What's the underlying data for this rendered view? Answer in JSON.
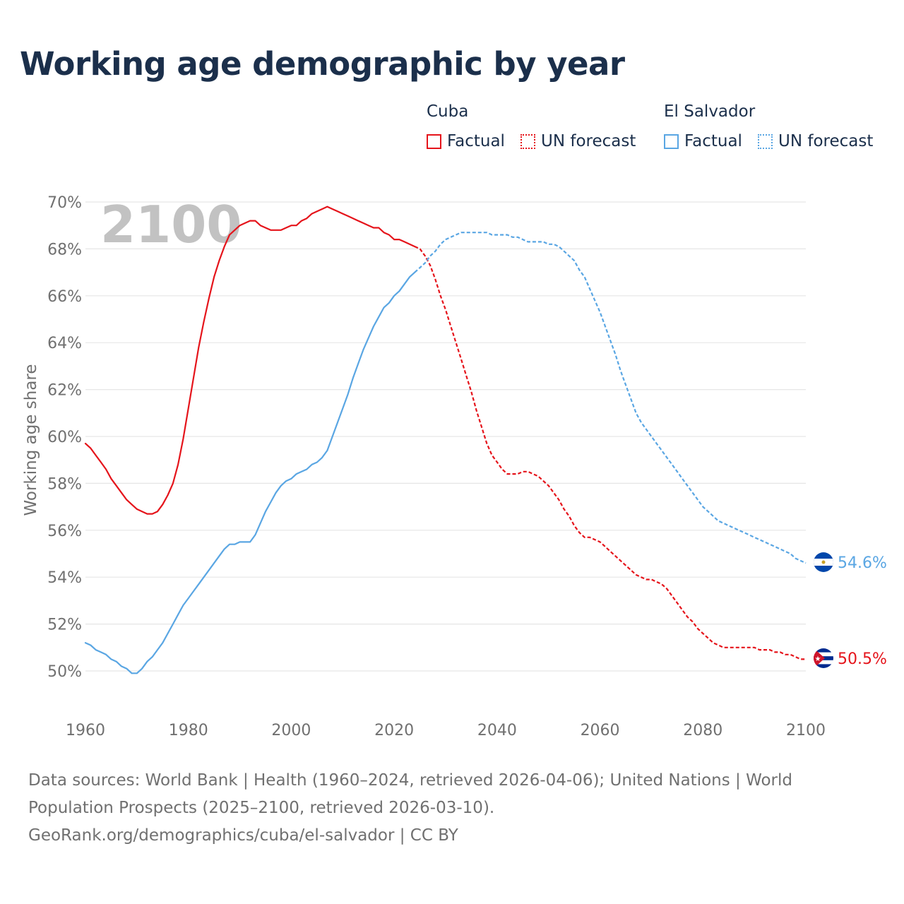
{
  "title": "Working age demographic by year",
  "legend": {
    "groups": [
      {
        "name": "Cuba",
        "factual_label": "Factual",
        "forecast_label": "UN forecast",
        "color": "#e5141b"
      },
      {
        "name": "El Salvador",
        "factual_label": "Factual",
        "forecast_label": "UN forecast",
        "color": "#5aa6e3"
      }
    ]
  },
  "footer": {
    "sources": "Data sources: World Bank | Health (1960–2024, retrieved 2026-04-06); United Nations | World Population Prospects (2025–2100, retrieved 2026-03-10).",
    "link": "GeoRank.org/demographics/cuba/el-salvador | CC BY"
  },
  "chart_data": {
    "type": "line",
    "title": "Working age demographic by year",
    "year_watermark": "2100",
    "xlabel": "",
    "ylabel": "Working age share",
    "xlim": [
      1960,
      2100
    ],
    "ylim": [
      49,
      70
    ],
    "x_ticks": [
      1960,
      1980,
      2000,
      2020,
      2040,
      2060,
      2080,
      2100
    ],
    "x_tick_labels": [
      "1960",
      "1980",
      "2000",
      "2020",
      "2040",
      "2060",
      "2080",
      "2100"
    ],
    "y_ticks": [
      50,
      52,
      54,
      56,
      58,
      60,
      62,
      64,
      66,
      68,
      70
    ],
    "y_tick_labels": [
      "50%",
      "52%",
      "54%",
      "56%",
      "58%",
      "60%",
      "62%",
      "64%",
      "66%",
      "68%",
      "70%"
    ],
    "grid": true,
    "series": [
      {
        "name": "Cuba",
        "color": "#e5141b",
        "end_label": "50.5%",
        "factual": [
          [
            1960,
            59.7
          ],
          [
            1961,
            59.5
          ],
          [
            1962,
            59.2
          ],
          [
            1963,
            58.9
          ],
          [
            1964,
            58.6
          ],
          [
            1965,
            58.2
          ],
          [
            1966,
            57.9
          ],
          [
            1967,
            57.6
          ],
          [
            1968,
            57.3
          ],
          [
            1969,
            57.1
          ],
          [
            1970,
            56.9
          ],
          [
            1971,
            56.8
          ],
          [
            1972,
            56.7
          ],
          [
            1973,
            56.7
          ],
          [
            1974,
            56.8
          ],
          [
            1975,
            57.1
          ],
          [
            1976,
            57.5
          ],
          [
            1977,
            58.0
          ],
          [
            1978,
            58.8
          ],
          [
            1979,
            59.9
          ],
          [
            1980,
            61.2
          ],
          [
            1981,
            62.5
          ],
          [
            1982,
            63.8
          ],
          [
            1983,
            64.9
          ],
          [
            1984,
            65.9
          ],
          [
            1985,
            66.8
          ],
          [
            1986,
            67.5
          ],
          [
            1987,
            68.1
          ],
          [
            1988,
            68.6
          ],
          [
            1989,
            68.8
          ],
          [
            1990,
            69.0
          ],
          [
            1991,
            69.1
          ],
          [
            1992,
            69.2
          ],
          [
            1993,
            69.2
          ],
          [
            1994,
            69.0
          ],
          [
            1995,
            68.9
          ],
          [
            1996,
            68.8
          ],
          [
            1997,
            68.8
          ],
          [
            1998,
            68.8
          ],
          [
            1999,
            68.9
          ],
          [
            2000,
            69.0
          ],
          [
            2001,
            69.0
          ],
          [
            2002,
            69.2
          ],
          [
            2003,
            69.3
          ],
          [
            2004,
            69.5
          ],
          [
            2005,
            69.6
          ],
          [
            2006,
            69.7
          ],
          [
            2007,
            69.8
          ],
          [
            2008,
            69.7
          ],
          [
            2009,
            69.6
          ],
          [
            2010,
            69.5
          ],
          [
            2011,
            69.4
          ],
          [
            2012,
            69.3
          ],
          [
            2013,
            69.2
          ],
          [
            2014,
            69.1
          ],
          [
            2015,
            69.0
          ],
          [
            2016,
            68.9
          ],
          [
            2017,
            68.9
          ],
          [
            2018,
            68.7
          ],
          [
            2019,
            68.6
          ],
          [
            2020,
            68.4
          ],
          [
            2021,
            68.4
          ],
          [
            2022,
            68.3
          ],
          [
            2023,
            68.2
          ],
          [
            2024,
            68.1
          ]
        ],
        "forecast": [
          [
            2024,
            68.1
          ],
          [
            2025,
            68.0
          ],
          [
            2026,
            67.7
          ],
          [
            2027,
            67.3
          ],
          [
            2028,
            66.7
          ],
          [
            2029,
            66.0
          ],
          [
            2030,
            65.4
          ],
          [
            2031,
            64.7
          ],
          [
            2032,
            64.0
          ],
          [
            2033,
            63.3
          ],
          [
            2034,
            62.6
          ],
          [
            2035,
            61.9
          ],
          [
            2036,
            61.1
          ],
          [
            2037,
            60.4
          ],
          [
            2038,
            59.7
          ],
          [
            2039,
            59.2
          ],
          [
            2040,
            58.9
          ],
          [
            2041,
            58.6
          ],
          [
            2042,
            58.4
          ],
          [
            2043,
            58.4
          ],
          [
            2044,
            58.4
          ],
          [
            2045,
            58.5
          ],
          [
            2046,
            58.5
          ],
          [
            2047,
            58.4
          ],
          [
            2048,
            58.3
          ],
          [
            2049,
            58.1
          ],
          [
            2050,
            57.9
          ],
          [
            2051,
            57.6
          ],
          [
            2052,
            57.3
          ],
          [
            2053,
            56.9
          ],
          [
            2054,
            56.6
          ],
          [
            2055,
            56.2
          ],
          [
            2056,
            55.9
          ],
          [
            2057,
            55.7
          ],
          [
            2058,
            55.7
          ],
          [
            2059,
            55.6
          ],
          [
            2060,
            55.5
          ],
          [
            2061,
            55.3
          ],
          [
            2062,
            55.1
          ],
          [
            2063,
            54.9
          ],
          [
            2064,
            54.7
          ],
          [
            2065,
            54.5
          ],
          [
            2066,
            54.3
          ],
          [
            2067,
            54.1
          ],
          [
            2068,
            54.0
          ],
          [
            2069,
            53.9
          ],
          [
            2070,
            53.9
          ],
          [
            2071,
            53.8
          ],
          [
            2072,
            53.7
          ],
          [
            2073,
            53.5
          ],
          [
            2074,
            53.2
          ],
          [
            2075,
            52.9
          ],
          [
            2076,
            52.6
          ],
          [
            2077,
            52.3
          ],
          [
            2078,
            52.1
          ],
          [
            2079,
            51.8
          ],
          [
            2080,
            51.6
          ],
          [
            2081,
            51.4
          ],
          [
            2082,
            51.2
          ],
          [
            2083,
            51.1
          ],
          [
            2084,
            51.0
          ],
          [
            2085,
            51.0
          ],
          [
            2086,
            51.0
          ],
          [
            2087,
            51.0
          ],
          [
            2088,
            51.0
          ],
          [
            2089,
            51.0
          ],
          [
            2090,
            51.0
          ],
          [
            2091,
            50.9
          ],
          [
            2092,
            50.9
          ],
          [
            2093,
            50.9
          ],
          [
            2094,
            50.8
          ],
          [
            2095,
            50.8
          ],
          [
            2096,
            50.7
          ],
          [
            2097,
            50.7
          ],
          [
            2098,
            50.6
          ],
          [
            2099,
            50.5
          ],
          [
            2100,
            50.5
          ]
        ]
      },
      {
        "name": "El Salvador",
        "color": "#5aa6e3",
        "end_label": "54.6%",
        "factual": [
          [
            1960,
            51.2
          ],
          [
            1961,
            51.1
          ],
          [
            1962,
            50.9
          ],
          [
            1963,
            50.8
          ],
          [
            1964,
            50.7
          ],
          [
            1965,
            50.5
          ],
          [
            1966,
            50.4
          ],
          [
            1967,
            50.2
          ],
          [
            1968,
            50.1
          ],
          [
            1969,
            49.9
          ],
          [
            1970,
            49.9
          ],
          [
            1971,
            50.1
          ],
          [
            1972,
            50.4
          ],
          [
            1973,
            50.6
          ],
          [
            1974,
            50.9
          ],
          [
            1975,
            51.2
          ],
          [
            1976,
            51.6
          ],
          [
            1977,
            52.0
          ],
          [
            1978,
            52.4
          ],
          [
            1979,
            52.8
          ],
          [
            1980,
            53.1
          ],
          [
            1981,
            53.4
          ],
          [
            1982,
            53.7
          ],
          [
            1983,
            54.0
          ],
          [
            1984,
            54.3
          ],
          [
            1985,
            54.6
          ],
          [
            1986,
            54.9
          ],
          [
            1987,
            55.2
          ],
          [
            1988,
            55.4
          ],
          [
            1989,
            55.4
          ],
          [
            1990,
            55.5
          ],
          [
            1991,
            55.5
          ],
          [
            1992,
            55.5
          ],
          [
            1993,
            55.8
          ],
          [
            1994,
            56.3
          ],
          [
            1995,
            56.8
          ],
          [
            1996,
            57.2
          ],
          [
            1997,
            57.6
          ],
          [
            1998,
            57.9
          ],
          [
            1999,
            58.1
          ],
          [
            2000,
            58.2
          ],
          [
            2001,
            58.4
          ],
          [
            2002,
            58.5
          ],
          [
            2003,
            58.6
          ],
          [
            2004,
            58.8
          ],
          [
            2005,
            58.9
          ],
          [
            2006,
            59.1
          ],
          [
            2007,
            59.4
          ],
          [
            2008,
            60.0
          ],
          [
            2009,
            60.6
          ],
          [
            2010,
            61.2
          ],
          [
            2011,
            61.8
          ],
          [
            2012,
            62.5
          ],
          [
            2013,
            63.1
          ],
          [
            2014,
            63.7
          ],
          [
            2015,
            64.2
          ],
          [
            2016,
            64.7
          ],
          [
            2017,
            65.1
          ],
          [
            2018,
            65.5
          ],
          [
            2019,
            65.7
          ],
          [
            2020,
            66.0
          ],
          [
            2021,
            66.2
          ],
          [
            2022,
            66.5
          ],
          [
            2023,
            66.8
          ],
          [
            2024,
            67.0
          ]
        ],
        "forecast": [
          [
            2024,
            67.0
          ],
          [
            2025,
            67.2
          ],
          [
            2026,
            67.4
          ],
          [
            2027,
            67.7
          ],
          [
            2028,
            67.9
          ],
          [
            2029,
            68.2
          ],
          [
            2030,
            68.4
          ],
          [
            2031,
            68.5
          ],
          [
            2032,
            68.6
          ],
          [
            2033,
            68.7
          ],
          [
            2034,
            68.7
          ],
          [
            2035,
            68.7
          ],
          [
            2036,
            68.7
          ],
          [
            2037,
            68.7
          ],
          [
            2038,
            68.7
          ],
          [
            2039,
            68.6
          ],
          [
            2040,
            68.6
          ],
          [
            2041,
            68.6
          ],
          [
            2042,
            68.6
          ],
          [
            2043,
            68.5
          ],
          [
            2044,
            68.5
          ],
          [
            2045,
            68.4
          ],
          [
            2046,
            68.3
          ],
          [
            2047,
            68.3
          ],
          [
            2048,
            68.3
          ],
          [
            2049,
            68.3
          ],
          [
            2050,
            68.2
          ],
          [
            2051,
            68.2
          ],
          [
            2052,
            68.1
          ],
          [
            2053,
            67.9
          ],
          [
            2054,
            67.7
          ],
          [
            2055,
            67.5
          ],
          [
            2056,
            67.1
          ],
          [
            2057,
            66.8
          ],
          [
            2058,
            66.3
          ],
          [
            2059,
            65.8
          ],
          [
            2060,
            65.3
          ],
          [
            2061,
            64.7
          ],
          [
            2062,
            64.1
          ],
          [
            2063,
            63.5
          ],
          [
            2064,
            62.8
          ],
          [
            2065,
            62.2
          ],
          [
            2066,
            61.6
          ],
          [
            2067,
            61.0
          ],
          [
            2068,
            60.6
          ],
          [
            2069,
            60.3
          ],
          [
            2070,
            60.0
          ],
          [
            2071,
            59.7
          ],
          [
            2072,
            59.4
          ],
          [
            2073,
            59.1
          ],
          [
            2074,
            58.8
          ],
          [
            2075,
            58.5
          ],
          [
            2076,
            58.2
          ],
          [
            2077,
            57.9
          ],
          [
            2078,
            57.6
          ],
          [
            2079,
            57.3
          ],
          [
            2080,
            57.0
          ],
          [
            2081,
            56.8
          ],
          [
            2082,
            56.6
          ],
          [
            2083,
            56.4
          ],
          [
            2084,
            56.3
          ],
          [
            2085,
            56.2
          ],
          [
            2086,
            56.1
          ],
          [
            2087,
            56.0
          ],
          [
            2088,
            55.9
          ],
          [
            2089,
            55.8
          ],
          [
            2090,
            55.7
          ],
          [
            2091,
            55.6
          ],
          [
            2092,
            55.5
          ],
          [
            2093,
            55.4
          ],
          [
            2094,
            55.3
          ],
          [
            2095,
            55.2
          ],
          [
            2096,
            55.1
          ],
          [
            2097,
            55.0
          ],
          [
            2098,
            54.8
          ],
          [
            2099,
            54.7
          ],
          [
            2100,
            54.6
          ]
        ]
      }
    ]
  }
}
